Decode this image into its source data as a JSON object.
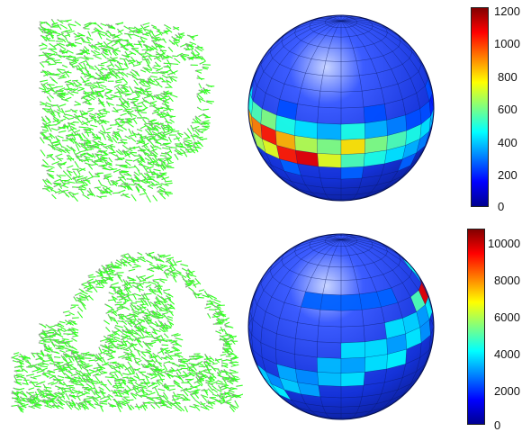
{
  "colorbars": [
    {
      "ticks": [
        "1200",
        "1000",
        "800",
        "600",
        "400",
        "200",
        "0"
      ]
    },
    {
      "ticks": [
        "10000",
        "8000",
        "6000",
        "4000",
        "2000",
        "0"
      ]
    }
  ],
  "colors": {
    "points": "#9a9a9a",
    "normals": "#33ff22",
    "sphere_base": "#1a3cf0",
    "grid_line": "#0a1a66"
  },
  "colormap": "jet"
}
